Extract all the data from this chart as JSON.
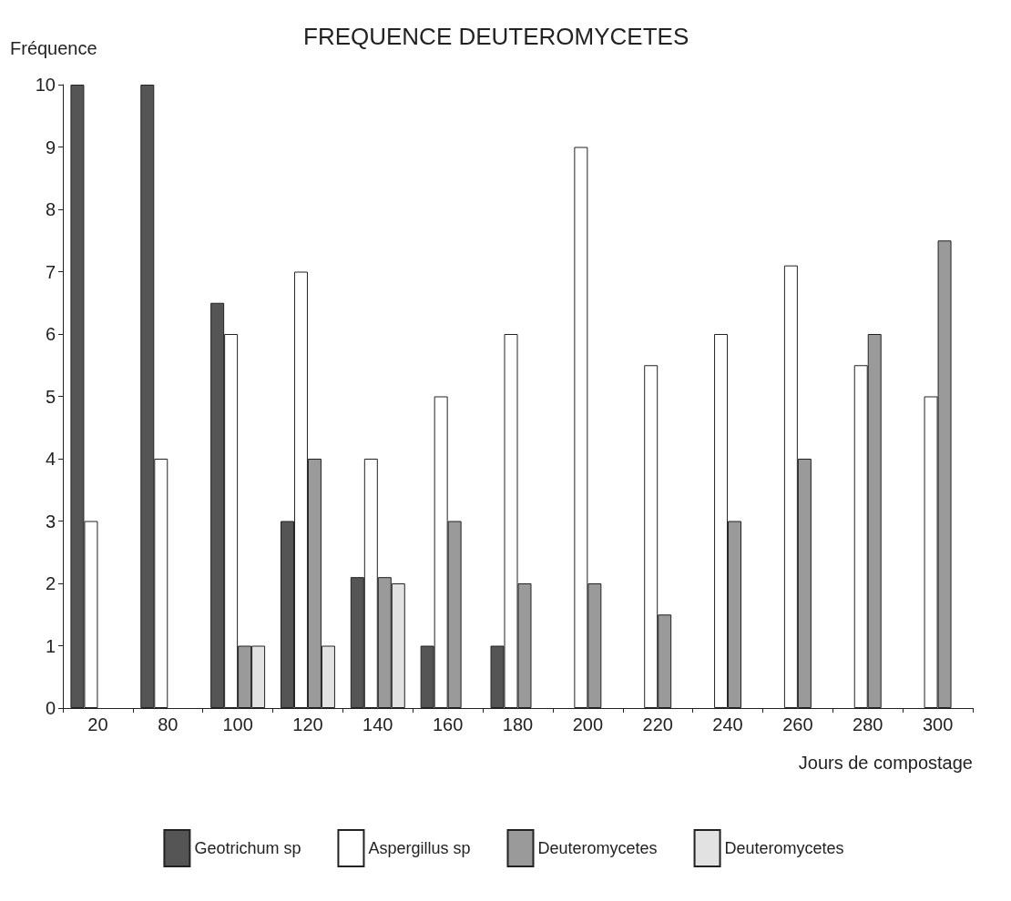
{
  "chart_data": {
    "type": "bar",
    "title": "FREQUENCE DEUTEROMYCETES",
    "xlabel": "Jours de compostage",
    "ylabel": "Fréquence",
    "categories": [
      "20",
      "80",
      "100",
      "120",
      "140",
      "160",
      "180",
      "200",
      "220",
      "240",
      "260",
      "280",
      "300"
    ],
    "series": [
      {
        "name": "Geotrichum sp",
        "color": "#555555",
        "values": [
          10,
          10,
          6.5,
          3,
          2.1,
          1,
          1,
          null,
          null,
          null,
          null,
          null,
          null
        ]
      },
      {
        "name": "Aspergillus sp",
        "color": "#ffffff",
        "values": [
          3,
          4,
          6,
          7,
          4,
          5,
          6,
          9,
          5.5,
          6,
          7.1,
          5.5,
          5
        ]
      },
      {
        "name": "Deuteromycetes",
        "color": "#9a9a9a",
        "values": [
          null,
          null,
          1,
          4,
          2.1,
          3,
          2,
          2,
          1.5,
          3,
          4,
          6,
          7.5
        ]
      },
      {
        "name": "Deuteromycetes",
        "color": "#e2e2e2",
        "values": [
          null,
          null,
          1,
          1,
          2,
          null,
          null,
          null,
          null,
          null,
          null,
          null,
          null
        ]
      }
    ],
    "ylim": [
      0,
      10
    ],
    "yticks": [
      0,
      1,
      2,
      3,
      4,
      5,
      6,
      7,
      8,
      9,
      10
    ],
    "grid": false,
    "legend": "bottom"
  }
}
